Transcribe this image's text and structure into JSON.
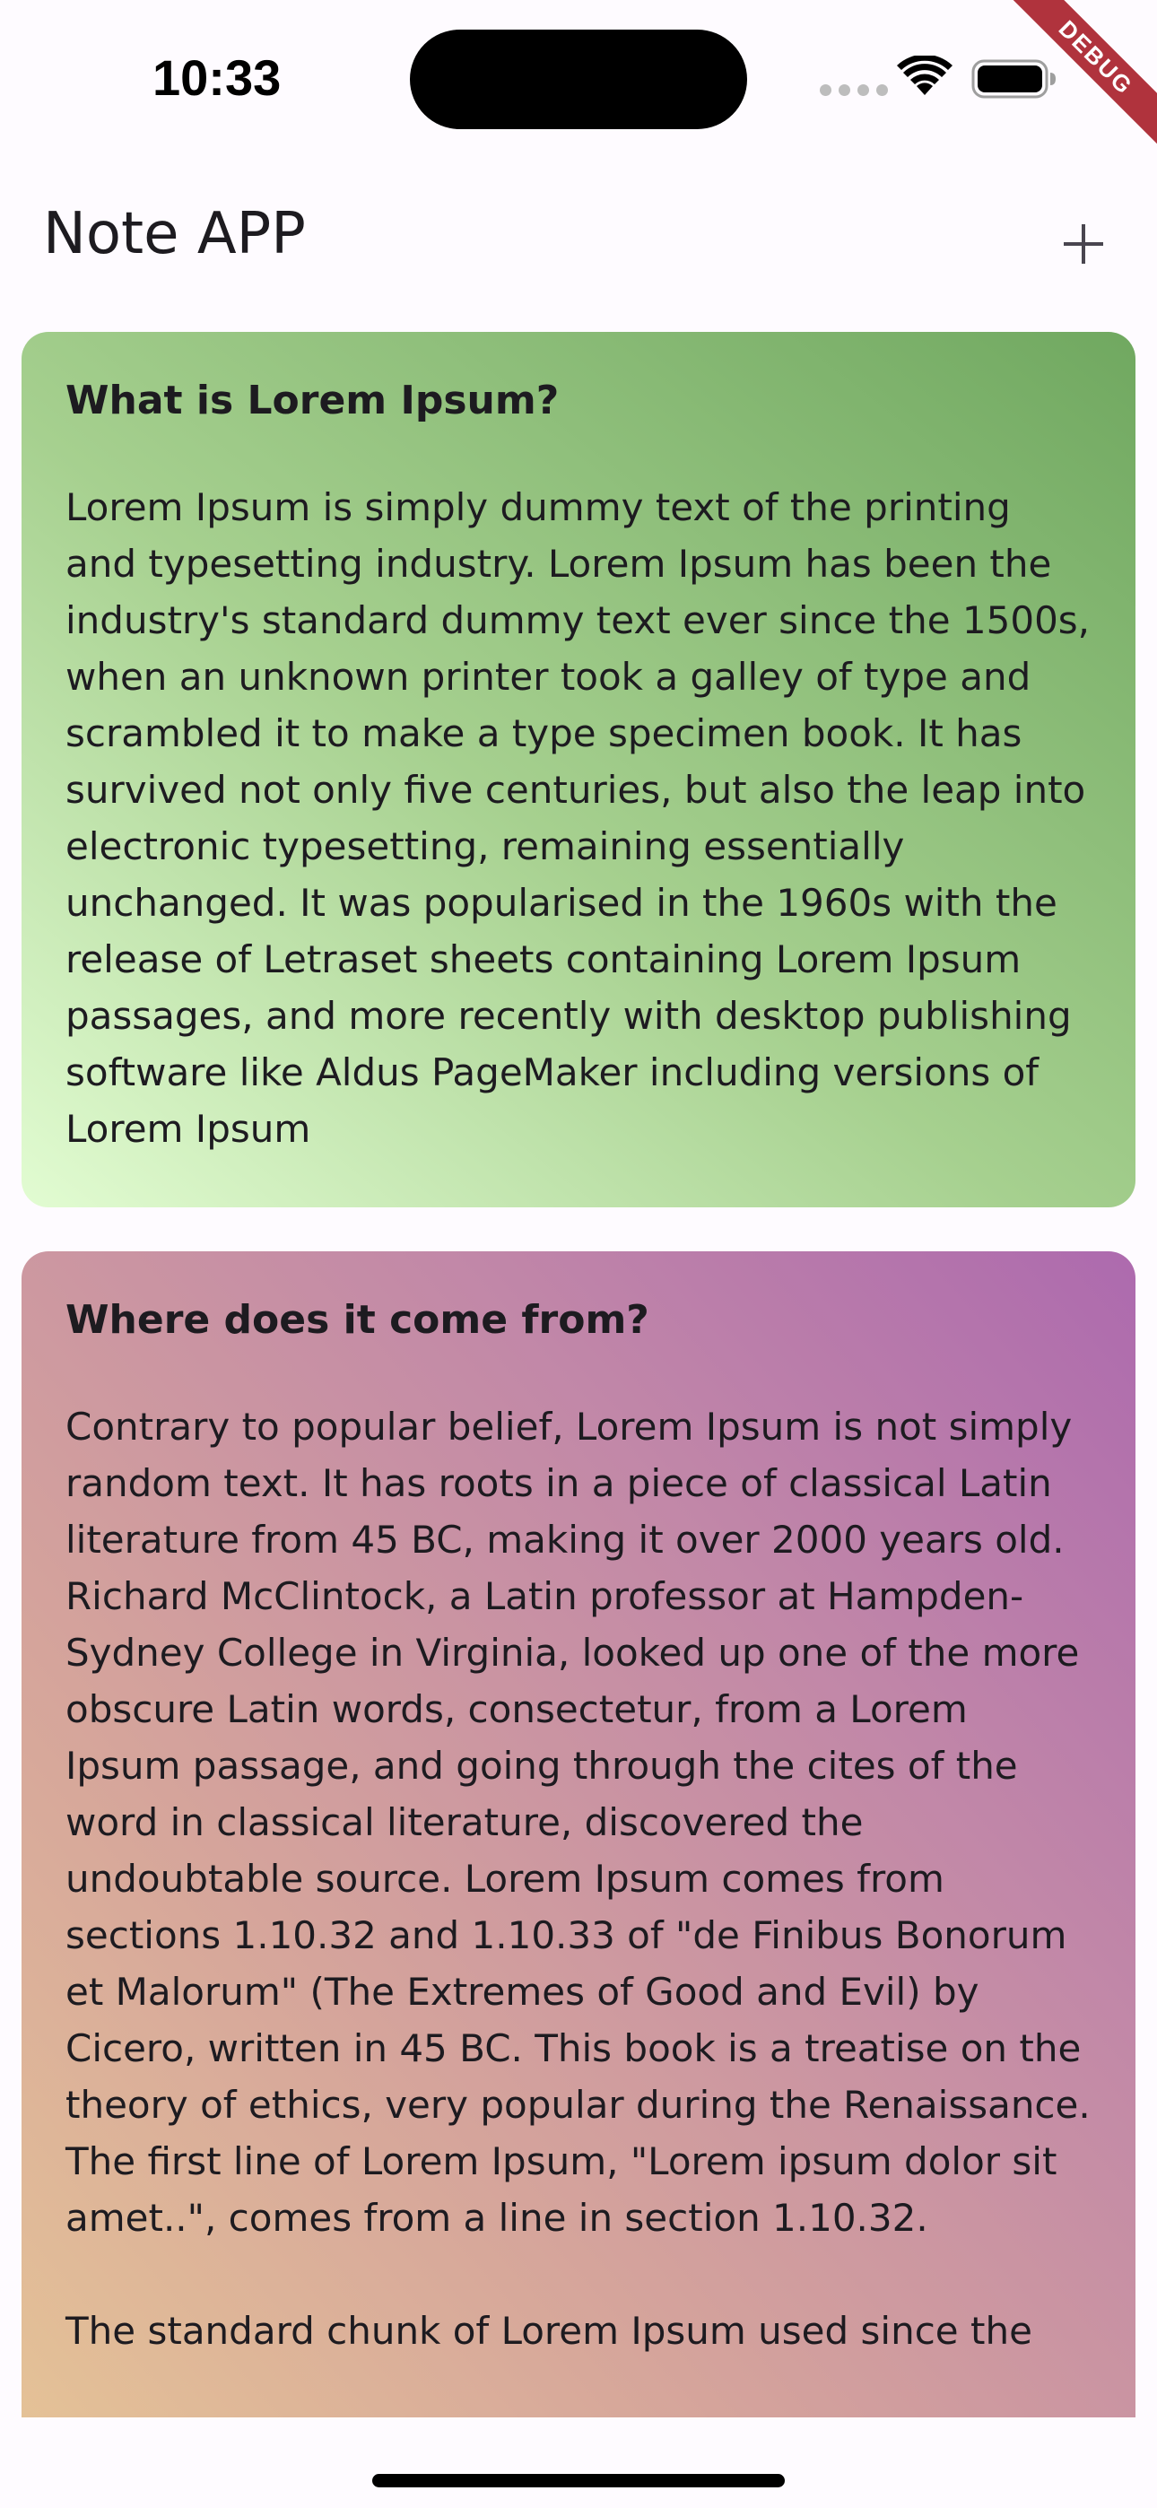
{
  "status_bar": {
    "time": "10:33",
    "icons": [
      "signal-dots-icon",
      "wifi-icon",
      "battery-icon"
    ]
  },
  "debug_banner": {
    "label": "DEBUG",
    "color": "#b0333d"
  },
  "app_bar": {
    "title": "Note APP",
    "add_icon": "plus-icon"
  },
  "notes": [
    {
      "title": "What is Lorem Ipsum?",
      "body": "Lorem Ipsum is simply dummy text of the printing and typesetting industry. Lorem Ipsum has been the industry's standard dummy text ever since the 1500s, when an unknown printer took a galley of type and scrambled it to make a type specimen book. It has survived not only five centuries, but also the leap into electronic typesetting, remaining essentially unchanged. It was popularised in the 1960s with the release of Letraset sheets containing Lorem Ipsum passages, and more recently with desktop publishing software like Aldus PageMaker including versions of Lorem Ipsum",
      "gradient": [
        "#e2fcd2",
        "#70a860"
      ]
    },
    {
      "title": "Where does it come from?",
      "body": "Contrary to popular belief, Lorem Ipsum is not simply random text. It has roots in a piece of classical Latin literature from 45 BC, making it over 2000 years old. Richard McClintock, a Latin professor at Hampden-Sydney College in Virginia, looked up one of the more obscure Latin words, consectetur, from a Lorem Ipsum passage, and going through the cites of the word in classical literature, discovered the undoubtable source. Lorem Ipsum comes from sections 1.10.32 and 1.10.33 of \"de Finibus Bonorum et Malorum\" (The Extremes of Good and Evil) by Cicero, written in 45 BC. This book is a treatise on the theory of ethics, very popular during the Renaissance. The first line of Lorem Ipsum, \"Lorem ipsum dolor sit amet..\", comes from a line in section 1.10.32.\n\nThe standard chunk of Lorem Ipsum used since the",
      "gradient": [
        "#e6c596",
        "#ad6aae"
      ]
    }
  ]
}
